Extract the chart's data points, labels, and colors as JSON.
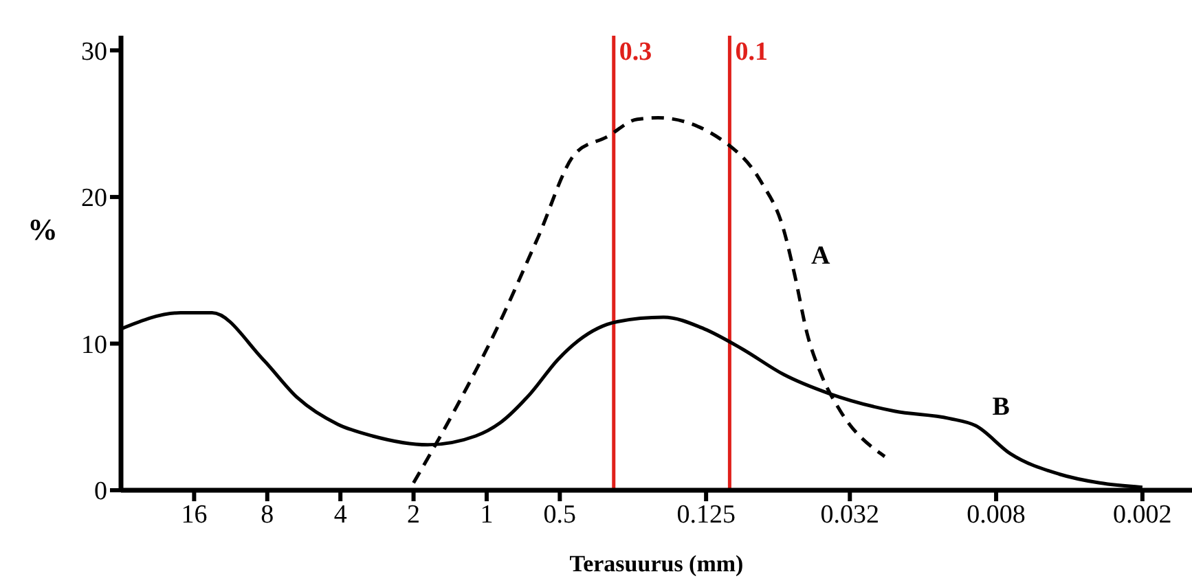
{
  "chart_data": {
    "type": "line",
    "xlabel": "Terasuurus (mm)",
    "ylabel": "%",
    "log": "x",
    "xlim": [
      32,
      0.00125
    ],
    "xticks": [
      16,
      8,
      4,
      2,
      1,
      0.5,
      0.125,
      0.032,
      0.008,
      0.002
    ],
    "ylim": [
      0,
      31
    ],
    "yticks": [
      0,
      10,
      20,
      30
    ],
    "grid": false,
    "legend": false,
    "marker": "none",
    "series": [
      {
        "name": "A",
        "color": "#000000",
        "line_style": "dashed",
        "x": [
          2.0,
          1.36,
          0.91,
          0.62,
          0.43,
          0.32,
          0.24,
          0.197,
          0.1,
          0.074,
          0.06,
          0.054,
          0.048,
          0.042,
          0.035,
          0.023
        ],
        "values": [
          0.5,
          5.4,
          11.0,
          17.1,
          23.0,
          24.1,
          25.3,
          25.4,
          23.5,
          21.0,
          17.8,
          14.7,
          10.7,
          7.9,
          5.4,
          2.3
        ]
      },
      {
        "name": "B",
        "color": "#000000",
        "line_style": "solid",
        "x": [
          32,
          18.2,
          13.5,
          8.3,
          6.0,
          4.1,
          2.95,
          1.75,
          1.11,
          0.88,
          0.66,
          0.51,
          0.42,
          0.29,
          0.187,
          0.127,
          0.088,
          0.06,
          0.039,
          0.021,
          0.0125,
          0.0097,
          0.007,
          0.0044,
          0.003,
          0.002
        ],
        "values": [
          11.0,
          12.1,
          12.1,
          8.9,
          6.3,
          4.5,
          3.7,
          3.1,
          3.7,
          4.6,
          6.6,
          8.9,
          10.2,
          11.5,
          11.8,
          11.0,
          9.6,
          7.9,
          6.6,
          5.4,
          4.9,
          4.4,
          2.5,
          1.1,
          0.5,
          0.2
        ]
      }
    ],
    "ref_lines": [
      {
        "axis": "x",
        "value": 0.3,
        "label": "0.3",
        "color": "#e0201b"
      },
      {
        "axis": "x",
        "value": 0.1,
        "label": "0.1",
        "color": "#e0201b"
      }
    ]
  }
}
